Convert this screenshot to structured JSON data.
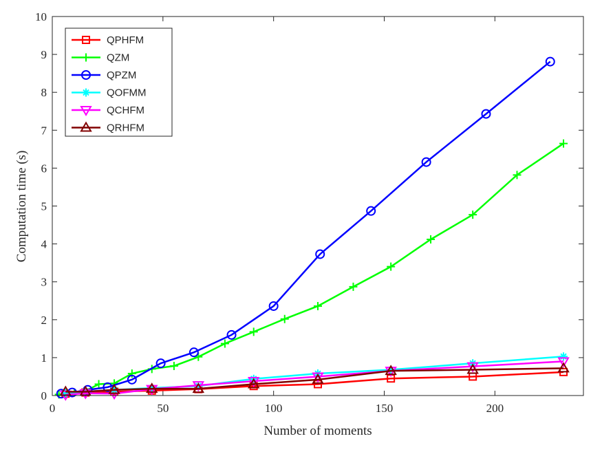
{
  "chart_data": {
    "type": "line",
    "title": "",
    "xlabel": "Number of moments",
    "ylabel": "Computation time (s)",
    "xlim": [
      0,
      240
    ],
    "ylim": [
      0,
      10
    ],
    "xticks": [
      0,
      50,
      100,
      150,
      200
    ],
    "yticks": [
      0,
      1,
      2,
      3,
      4,
      5,
      6,
      7,
      8,
      9,
      10
    ],
    "grid": false,
    "legend_position": "top-left",
    "series": [
      {
        "name": "QPHFM",
        "color": "#ff0000",
        "marker": "square",
        "x": [
          6,
          15,
          28,
          45,
          66,
          91,
          120,
          153,
          190,
          231
        ],
        "y": [
          0.05,
          0.08,
          0.1,
          0.13,
          0.17,
          0.25,
          0.3,
          0.45,
          0.5,
          0.62
        ]
      },
      {
        "name": "QZM",
        "color": "#00ff00",
        "marker": "plus",
        "x": [
          3,
          6,
          10,
          15,
          21,
          28,
          36,
          45,
          55,
          66,
          78,
          91,
          105,
          120,
          136,
          153,
          171,
          190,
          210,
          231
        ],
        "y": [
          0.03,
          0.05,
          0.08,
          0.12,
          0.3,
          0.32,
          0.58,
          0.7,
          0.78,
          1.02,
          1.37,
          1.68,
          2.02,
          2.36,
          2.87,
          3.4,
          4.12,
          4.77,
          5.82,
          6.65
        ]
      },
      {
        "name": "QPZM",
        "color": "#0000ff",
        "marker": "circle",
        "x": [
          4,
          9,
          16,
          25,
          36,
          49,
          64,
          81,
          100,
          121,
          144,
          169,
          196,
          225
        ],
        "y": [
          0.05,
          0.08,
          0.15,
          0.22,
          0.42,
          0.85,
          1.14,
          1.6,
          2.36,
          3.73,
          4.87,
          6.16,
          7.43,
          8.81
        ]
      },
      {
        "name": "QOFMM",
        "color": "#00ffff",
        "marker": "asterisk",
        "x": [
          6,
          15,
          28,
          45,
          66,
          91,
          120,
          153,
          190,
          231
        ],
        "y": [
          0.07,
          0.1,
          0.15,
          0.2,
          0.25,
          0.44,
          0.58,
          0.68,
          0.85,
          1.03
        ]
      },
      {
        "name": "QCHFM",
        "color": "#ff00ff",
        "marker": "triangle-down",
        "x": [
          6,
          15,
          28,
          45,
          66,
          91,
          120,
          153,
          190,
          231
        ],
        "y": [
          0.02,
          0.06,
          0.05,
          0.17,
          0.27,
          0.38,
          0.5,
          0.65,
          0.77,
          0.9
        ]
      },
      {
        "name": "QRHFM",
        "color": "#800000",
        "marker": "triangle-up",
        "x": [
          6,
          15,
          28,
          45,
          66,
          91,
          120,
          153,
          190,
          231
        ],
        "y": [
          0.1,
          0.1,
          0.15,
          0.18,
          0.18,
          0.3,
          0.42,
          0.65,
          0.68,
          0.72
        ]
      }
    ]
  }
}
